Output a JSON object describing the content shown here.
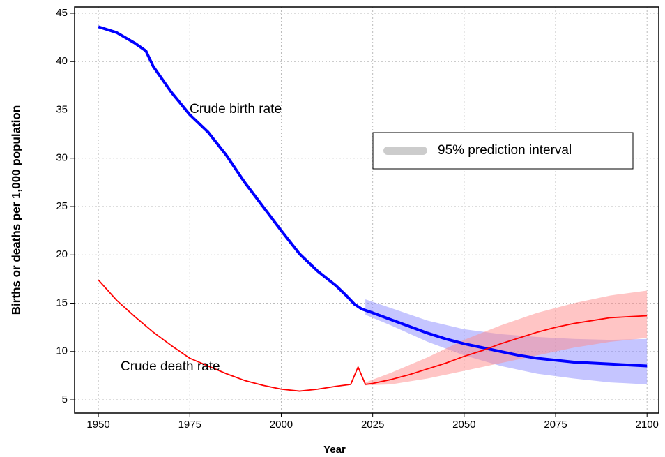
{
  "chart_data": {
    "type": "line",
    "xlabel": "Year",
    "ylabel": "Births or deaths per 1,000 population",
    "xlim": [
      1943.5,
      2103.2
    ],
    "ylim": [
      3.63,
      45.65
    ],
    "xticks": [
      1950,
      1975,
      2000,
      2025,
      2050,
      2075,
      2100
    ],
    "yticks": [
      5,
      10,
      15,
      20,
      25,
      30,
      35,
      40,
      45
    ],
    "grid": true,
    "series": [
      {
        "name": "Crude birth rate",
        "color": "#0000ff",
        "x": [
          1950,
          1955,
          1960,
          1963,
          1965,
          1970,
          1975,
          1980,
          1985,
          1990,
          1995,
          2000,
          2005,
          2010,
          2015,
          2018,
          2020,
          2022,
          2025,
          2030,
          2035,
          2040,
          2045,
          2050,
          2055,
          2060,
          2065,
          2070,
          2075,
          2080,
          2085,
          2090,
          2095,
          2100
        ],
        "values": [
          43.6,
          43.0,
          41.9,
          41.1,
          39.5,
          36.8,
          34.5,
          32.7,
          30.3,
          27.5,
          25.0,
          22.5,
          20.1,
          18.3,
          16.8,
          15.7,
          14.9,
          14.4,
          14.0,
          13.3,
          12.6,
          11.9,
          11.3,
          10.8,
          10.4,
          10.0,
          9.6,
          9.3,
          9.1,
          8.9,
          8.8,
          8.7,
          8.6,
          8.5
        ]
      },
      {
        "name": "Crude death rate",
        "color": "#ff0000",
        "x": [
          1950,
          1955,
          1960,
          1965,
          1970,
          1975,
          1980,
          1985,
          1990,
          1995,
          2000,
          2005,
          2010,
          2015,
          2019,
          2021,
          2023,
          2025,
          2030,
          2035,
          2040,
          2045,
          2050,
          2055,
          2060,
          2065,
          2070,
          2075,
          2080,
          2085,
          2090,
          2095,
          2100
        ],
        "values": [
          17.4,
          15.3,
          13.6,
          12.0,
          10.6,
          9.3,
          8.5,
          7.7,
          7.0,
          6.5,
          6.1,
          5.9,
          6.1,
          6.4,
          6.6,
          8.4,
          6.6,
          6.7,
          7.1,
          7.6,
          8.2,
          8.8,
          9.5,
          10.1,
          10.8,
          11.4,
          12.0,
          12.5,
          12.9,
          13.2,
          13.5,
          13.6,
          13.7
        ]
      }
    ],
    "bands": [
      {
        "color": "#8c8cff",
        "x": [
          2023,
          2030,
          2040,
          2050,
          2060,
          2070,
          2080,
          2090,
          2100
        ],
        "lower": [
          13.8,
          12.7,
          11.0,
          9.6,
          8.5,
          7.7,
          7.2,
          6.8,
          6.6
        ],
        "upper": [
          15.4,
          14.5,
          13.2,
          12.3,
          11.8,
          11.5,
          11.3,
          11.2,
          11.3
        ]
      },
      {
        "color": "#ff8c8c",
        "x": [
          2023,
          2030,
          2040,
          2050,
          2060,
          2070,
          2080,
          2090,
          2100
        ],
        "lower": [
          6.5,
          6.6,
          7.2,
          8.0,
          8.8,
          9.6,
          10.4,
          11.0,
          11.4
        ],
        "upper": [
          6.8,
          7.8,
          9.4,
          11.2,
          12.7,
          14.0,
          15.0,
          15.8,
          16.3
        ]
      }
    ],
    "legend": {
      "label": "95% prediction interval",
      "color": "#cccccc",
      "position": "upper right"
    }
  }
}
